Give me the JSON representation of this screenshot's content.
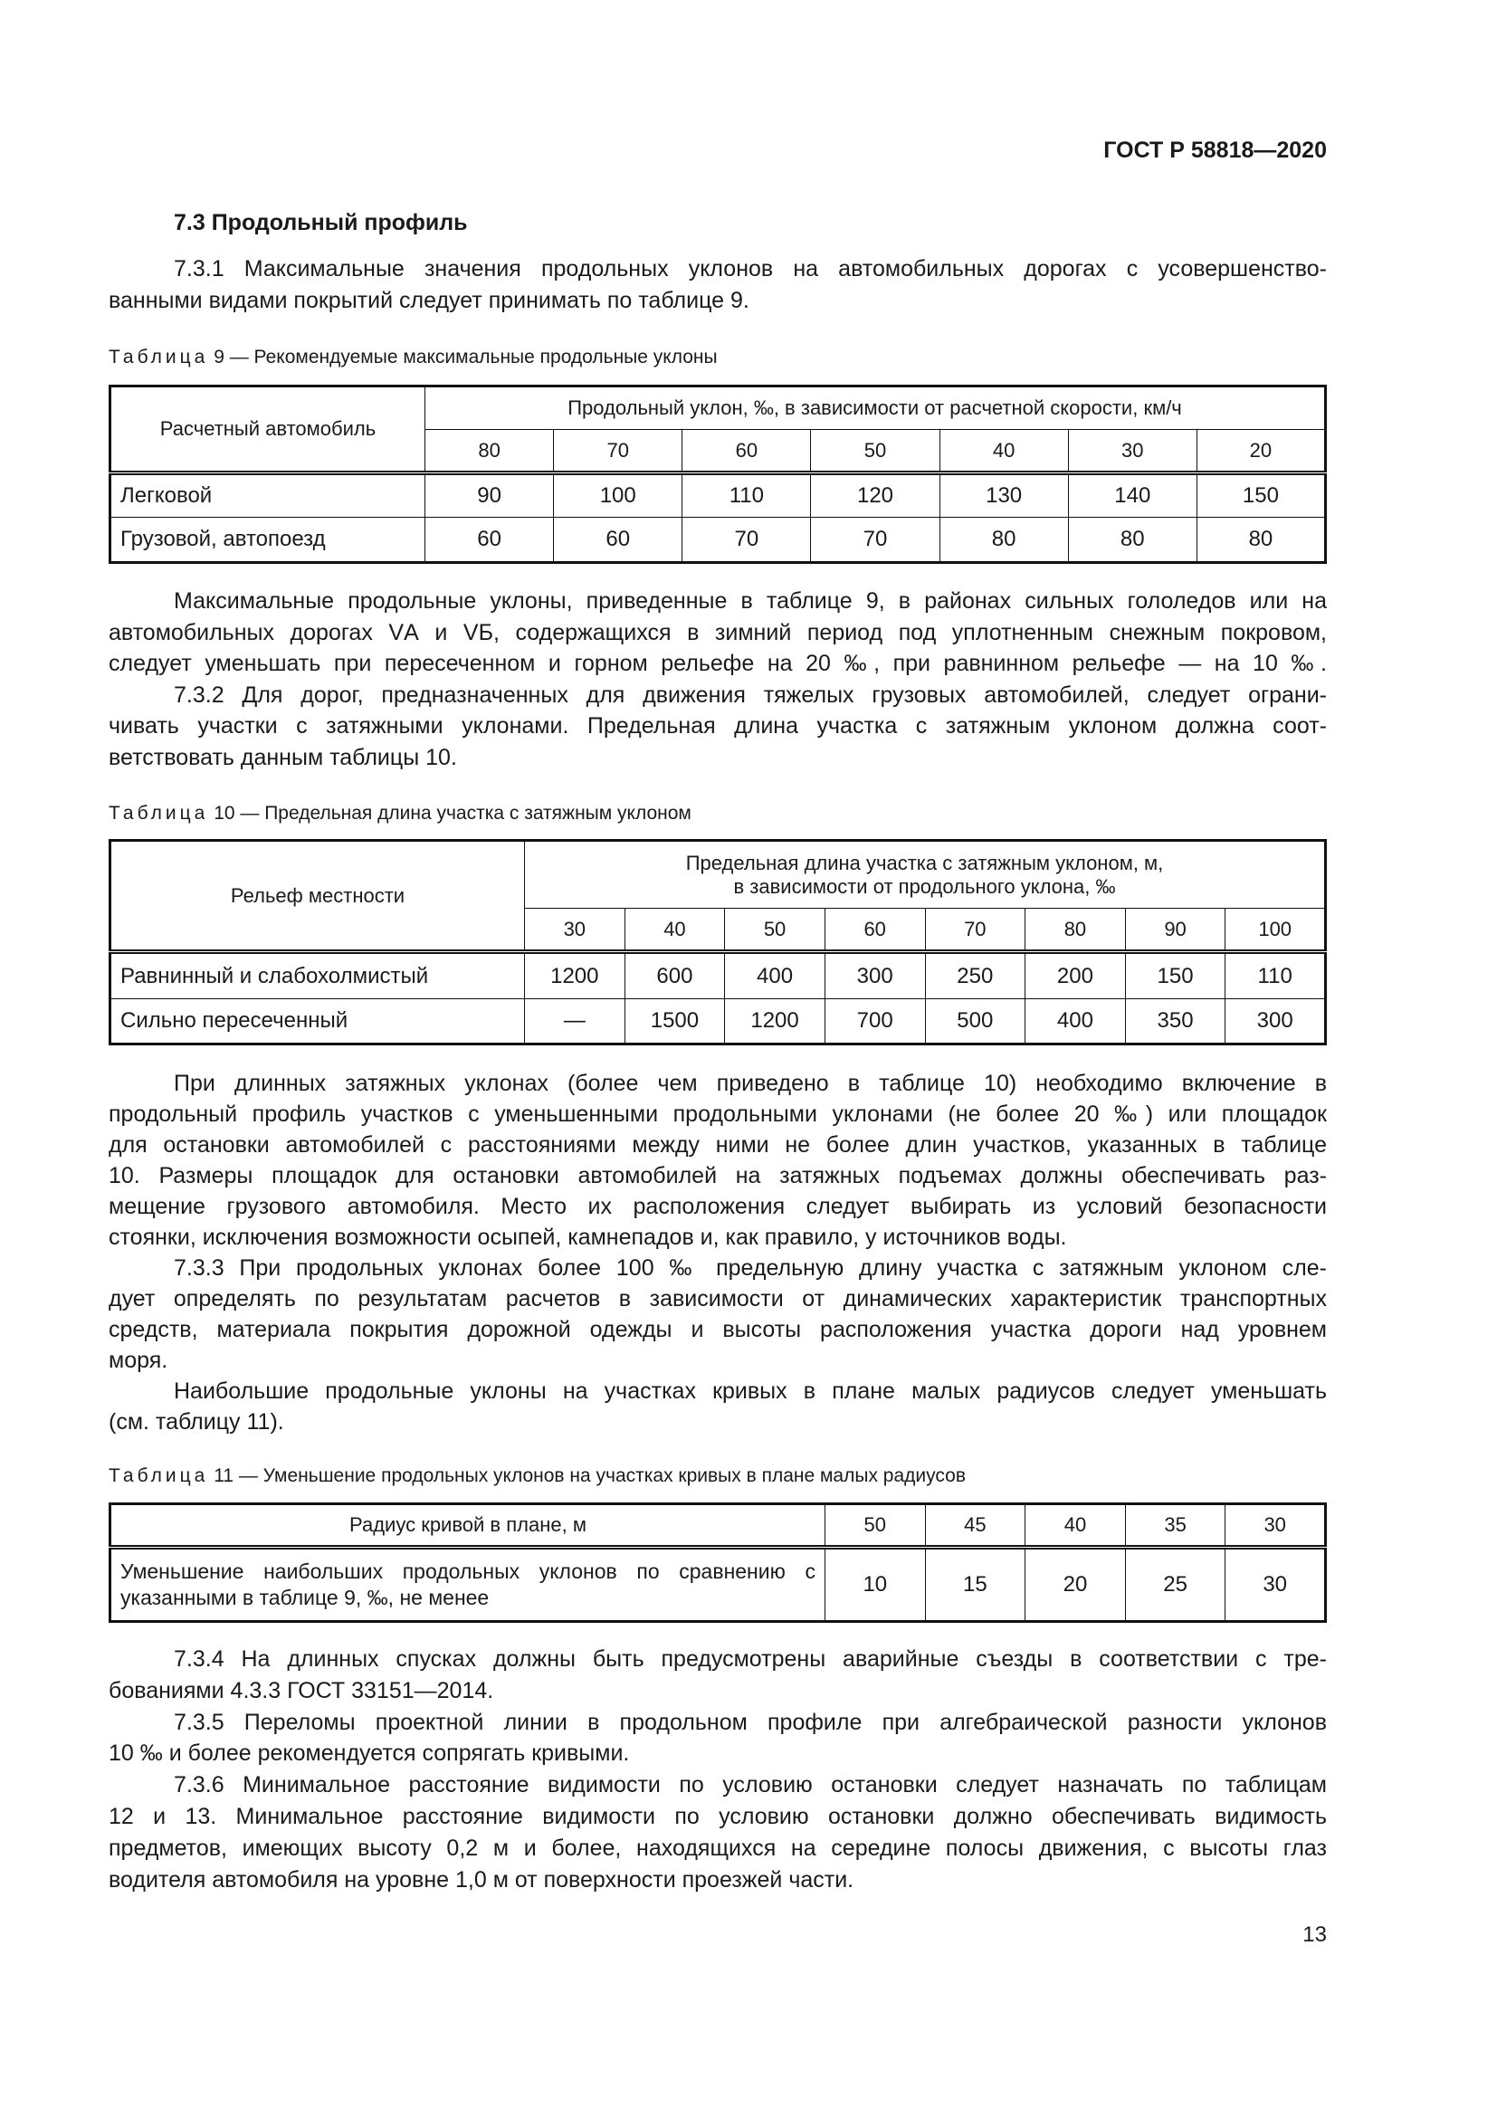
{
  "header": {
    "doc_id": "ГОСТ Р 58818—2020"
  },
  "section": {
    "title": "7.3 Продольный профиль"
  },
  "p1": [
    "7.3.1 Максимальные значения продольных уклонов на автомобильных дорогах с усовершенство-",
    "ванными видами покрытий следует принимать по таблице 9."
  ],
  "table9": {
    "caption_prefix": "Таблица",
    "caption": "9 — Рекомендуемые максимальные продольные уклоны",
    "row_header": "Расчетный автомобиль",
    "group_header": "Продольный уклон, ‰, в зависимости от расчетной скорости, км/ч",
    "speeds": [
      "80",
      "70",
      "60",
      "50",
      "40",
      "30",
      "20"
    ],
    "rows": [
      {
        "label": "Легковой",
        "values": [
          "90",
          "100",
          "110",
          "120",
          "130",
          "140",
          "150"
        ]
      },
      {
        "label": "Грузовой, автопоезд",
        "values": [
          "60",
          "60",
          "70",
          "70",
          "80",
          "80",
          "80"
        ]
      }
    ]
  },
  "p2": [
    "Максимальные продольные уклоны, приведенные в таблице 9, в районах сильных гололедов или на",
    "автомобильных дорогах VА и VБ, содержащихся в зимний период под уплотненным снежным покровом,",
    "следует уменьшать при пересеченном и горном рельефе на 20 ‰, при равнинном рельефе — на 10 ‰."
  ],
  "p3": [
    "7.3.2 Для дорог, предназначенных для движения тяжелых грузовых автомобилей, следует ограни-",
    "чивать участки с затяжными уклонами. Предельная длина участка с затяжным уклоном должна соот-",
    "ветствовать данным таблицы 10."
  ],
  "table10": {
    "caption_prefix": "Таблица",
    "caption": "10 — Предельная длина участка с затяжным уклоном",
    "row_header": "Рельеф местности",
    "group_header_1": "Предельная длина участка с затяжным уклоном, м,",
    "group_header_2": "в зависимости от продольного уклона, ‰",
    "grades": [
      "30",
      "40",
      "50",
      "60",
      "70",
      "80",
      "90",
      "100"
    ],
    "rows": [
      {
        "label": "Равнинный и слабохолмистый",
        "values": [
          "1200",
          "600",
          "400",
          "300",
          "250",
          "200",
          "150",
          "110"
        ]
      },
      {
        "label": "Сильно пересеченный",
        "values": [
          "—",
          "1500",
          "1200",
          "700",
          "500",
          "400",
          "350",
          "300"
        ]
      }
    ]
  },
  "p4": [
    "При длинных затяжных уклонах (более чем приведено в таблице 10) необходимо включение в",
    "продольный профиль участков с уменьшенными продольными уклонами (не более 20 ‰) или площадок",
    "для остановки автомобилей с расстояниями между ними не более длин участков, указанных в таблице",
    "10. Размеры площадок для остановки автомобилей на затяжных подъемах должны обеспечивать раз-",
    "мещение грузового автомобиля. Место их расположения следует выбирать из условий безопасности",
    "стоянки, исключения возможности осыпей, камнепадов и, как правило, у источников воды."
  ],
  "p5": [
    "7.3.3 При продольных уклонах более 100 ‰ предельную длину участка с затяжным уклоном сле-",
    "дует определять по результатам расчетов в зависимости от динамических характеристик транспортных",
    "средств, материала покрытия дорожной одежды и высоты расположения участка дороги над уровнем",
    "моря."
  ],
  "p6": [
    "Наибольшие продольные уклоны на участках кривых в плане малых радиусов следует уменьшать",
    "(см. таблицу 11)."
  ],
  "table11": {
    "caption_prefix": "Таблица",
    "caption": "11 — Уменьшение продольных уклонов на участках кривых в плане малых радиусов",
    "radius_label": "Радиус кривой в плане, м",
    "radii": [
      "50",
      "45",
      "40",
      "35",
      "30"
    ],
    "reduction_label": "Уменьшение наибольших продольных уклонов по сравнению с указанными в таблице 9, ‰, не менее",
    "reductions": [
      "10",
      "15",
      "20",
      "25",
      "30"
    ]
  },
  "p7": [
    "7.3.4 На длинных спусках должны быть предусмотрены аварийные съезды в соответствии с тре-",
    "бованиями 4.3.3 ГОСТ 33151—2014."
  ],
  "p8": [
    "7.3.5 Переломы проектной линии в продольном профиле при алгебраической разности уклонов",
    "10 ‰ и более рекомендуется сопрягать кривыми."
  ],
  "p9": [
    "7.3.6 Минимальное расстояние видимости по условию остановки следует назначать по таблицам",
    "12 и 13. Минимальное расстояние видимости по условию остановки должно обеспечивать видимость",
    "предметов, имеющих высоту 0,2 м и более, находящихся на середине полосы движения, с высоты глаз",
    "водителя автомобиля на уровне 1,0 м от поверхности проезжей части."
  ],
  "footer": {
    "page_number": "13"
  }
}
